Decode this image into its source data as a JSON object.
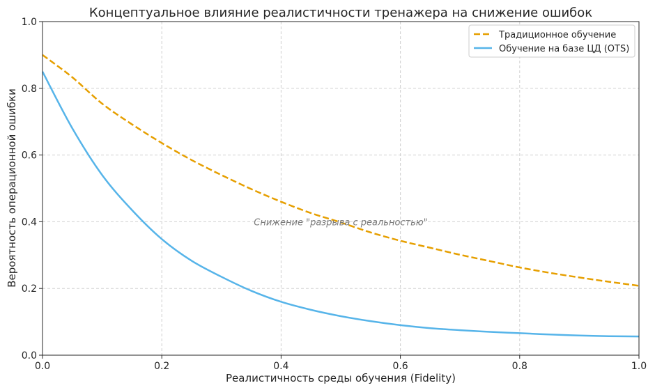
{
  "chart_data": {
    "type": "line",
    "title": "Концептуальное влияние реалистичности тренажера на снижение ошибок",
    "xlabel": "Реалистичность среды обучения (Fidelity)",
    "ylabel": "Вероятность операционной ошибки",
    "xlim": [
      0,
      1
    ],
    "ylim": [
      0,
      1
    ],
    "x_ticks": [
      "0.0",
      "0.2",
      "0.4",
      "0.6",
      "0.8",
      "1.0"
    ],
    "y_ticks": [
      "0.0",
      "0.2",
      "0.4",
      "0.6",
      "0.8",
      "1.0"
    ],
    "grid": true,
    "legend_position": "top-right",
    "annotation": "Снижение \"разрыва с реальностью\"",
    "annotation_at": [
      0.5,
      0.4
    ],
    "x": [
      0.0,
      0.05,
      0.1,
      0.15,
      0.2,
      0.25,
      0.3,
      0.35,
      0.4,
      0.45,
      0.5,
      0.55,
      0.6,
      0.65,
      0.7,
      0.75,
      0.8,
      0.85,
      0.9,
      0.95,
      1.0
    ],
    "series": [
      {
        "name": "Традиционное обучение",
        "color": "#E69F00",
        "dash": "dashed",
        "values": [
          0.9,
          0.833,
          0.754,
          0.692,
          0.636,
          0.585,
          0.54,
          0.498,
          0.46,
          0.426,
          0.398,
          0.368,
          0.343,
          0.322,
          0.301,
          0.282,
          0.263,
          0.247,
          0.233,
          0.22,
          0.208
        ]
      },
      {
        "name": "Обучение на базе ЦД (OTS)",
        "color": "#56B4E9",
        "dash": "solid",
        "values": [
          0.85,
          0.68,
          0.54,
          0.435,
          0.348,
          0.283,
          0.235,
          0.193,
          0.16,
          0.136,
          0.117,
          0.102,
          0.09,
          0.081,
          0.075,
          0.07,
          0.066,
          0.062,
          0.059,
          0.057,
          0.056
        ]
      }
    ]
  }
}
